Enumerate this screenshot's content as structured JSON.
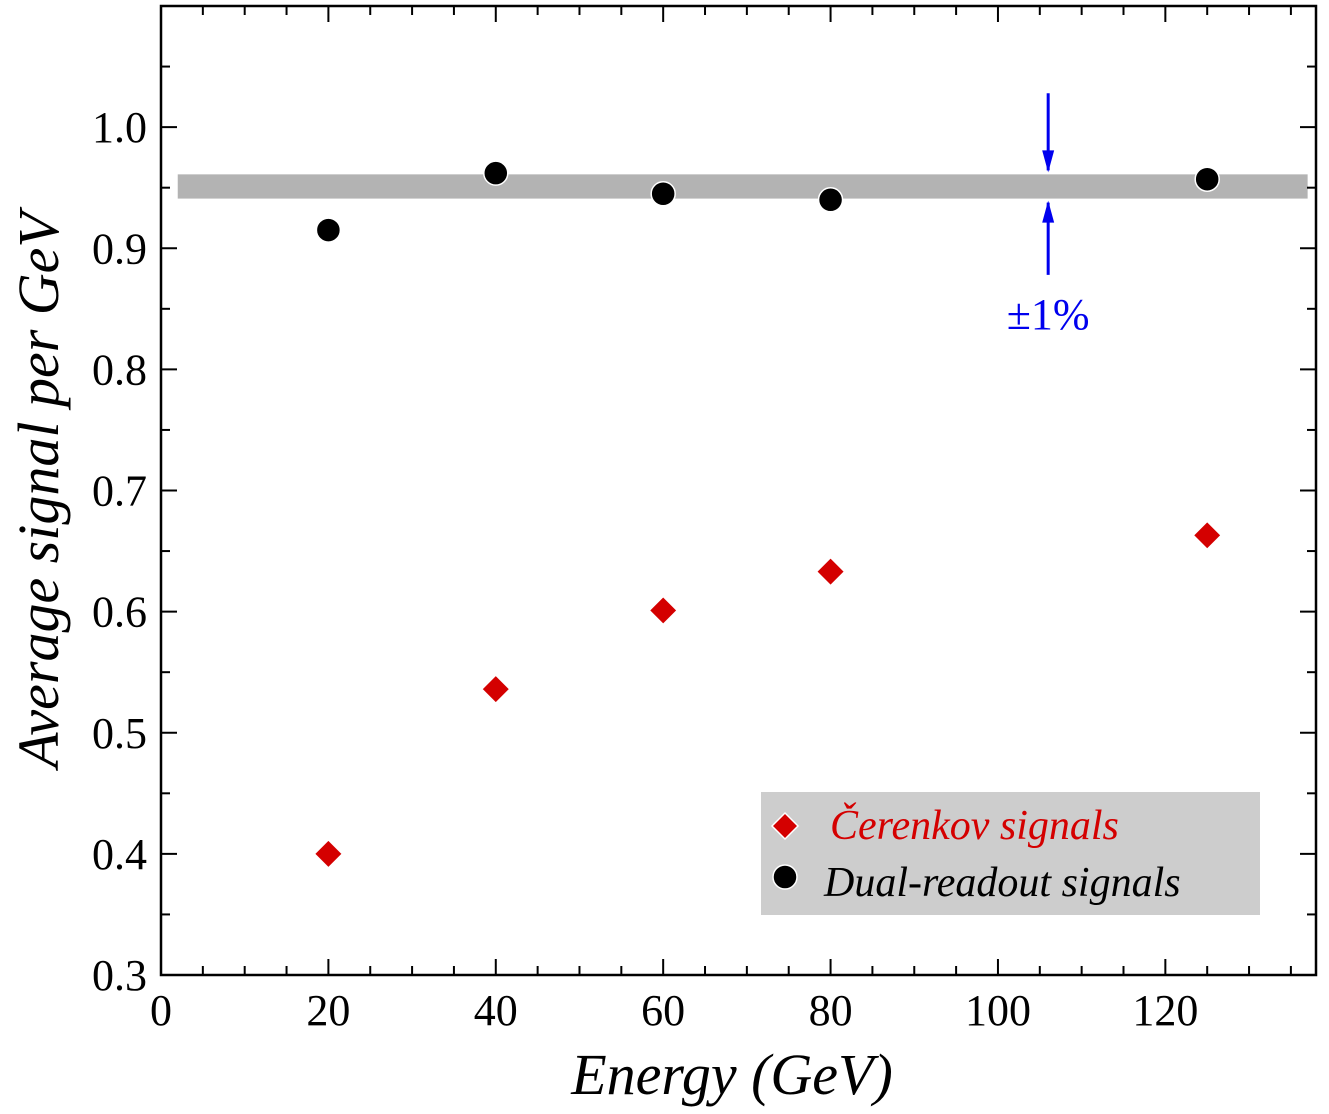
{
  "chart_data": {
    "type": "scatter",
    "xlabel": "Energy (GeV)",
    "ylabel": "Average signal per GeV",
    "xlim": [
      0,
      138
    ],
    "ylim": [
      0.3,
      1.1
    ],
    "x_ticks": [
      0,
      20,
      40,
      60,
      80,
      100,
      120
    ],
    "x_tick_labels": [
      "0",
      "20",
      "40",
      "60",
      "80",
      "100",
      "120"
    ],
    "y_ticks": [
      0.3,
      0.4,
      0.5,
      0.6,
      0.7,
      0.8,
      0.9,
      1.0
    ],
    "y_tick_labels": [
      "0.3",
      "0.4",
      "0.5",
      "0.6",
      "0.7",
      "0.8",
      "0.9",
      "1.0"
    ],
    "grid": false,
    "legend_position": "bottom-right",
    "series": [
      {
        "name": "Čerenkov signals",
        "marker": "diamond",
        "color": "#d40000",
        "x": [
          20,
          40,
          60,
          80,
          125
        ],
        "y": [
          0.4,
          0.536,
          0.601,
          0.633,
          0.663
        ]
      },
      {
        "name": "Dual-readout signals",
        "marker": "circle",
        "color": "#000000",
        "x": [
          20,
          40,
          60,
          80,
          125
        ],
        "y": [
          0.915,
          0.962,
          0.945,
          0.94,
          0.957
        ]
      }
    ],
    "band": {
      "x_range": [
        2,
        137
      ],
      "y_range": [
        0.941,
        0.961
      ],
      "color": "#b3b3b3"
    },
    "annotation": {
      "text": "±1%",
      "color": "#0000ee",
      "x": 106,
      "arrow_top_y": 1.028,
      "arrow_bottom_y": 0.878
    }
  }
}
